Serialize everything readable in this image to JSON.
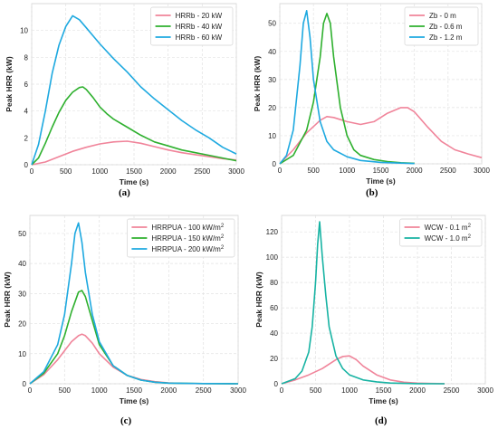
{
  "chart_data": [
    {
      "type": "line",
      "caption": "(a)",
      "xlabel": "Time (s)",
      "ylabel": "Peak HRR (kW)",
      "xlim": [
        0,
        3000
      ],
      "ylim": [
        0,
        12
      ],
      "xticks": [
        0,
        500,
        1000,
        1500,
        2000,
        2500,
        3000
      ],
      "yticks": [
        0,
        2,
        4,
        6,
        8,
        10
      ],
      "grid": true,
      "legend": "top-right",
      "series": [
        {
          "name": "HRRb - 20 kW",
          "color": "#f0849a",
          "x": [
            0,
            200,
            400,
            600,
            800,
            1000,
            1200,
            1400,
            1600,
            1800,
            2000,
            2200,
            2400,
            2600,
            2800,
            3000
          ],
          "y": [
            0,
            0.2,
            0.6,
            1.0,
            1.3,
            1.55,
            1.7,
            1.75,
            1.6,
            1.35,
            1.1,
            0.9,
            0.75,
            0.6,
            0.45,
            0.35
          ]
        },
        {
          "name": "HRRb - 40 kW",
          "color": "#2eb02e",
          "x": [
            0,
            100,
            200,
            300,
            400,
            500,
            600,
            700,
            750,
            800,
            900,
            1000,
            1100,
            1200,
            1400,
            1600,
            1800,
            2000,
            2200,
            2400,
            2600,
            2800,
            3000
          ],
          "y": [
            0,
            0.5,
            1.6,
            2.8,
            3.9,
            4.8,
            5.4,
            5.75,
            5.8,
            5.6,
            5.0,
            4.3,
            3.8,
            3.4,
            2.8,
            2.2,
            1.7,
            1.4,
            1.1,
            0.9,
            0.7,
            0.5,
            0.3
          ]
        },
        {
          "name": "HRRb - 60 kW",
          "color": "#1ea9e0",
          "x": [
            0,
            100,
            200,
            300,
            400,
            500,
            600,
            700,
            800,
            900,
            1000,
            1200,
            1400,
            1600,
            1800,
            2000,
            2200,
            2400,
            2600,
            2800,
            3000
          ],
          "y": [
            0,
            1.5,
            4.0,
            6.8,
            8.9,
            10.3,
            11.1,
            10.8,
            10.2,
            9.6,
            9.0,
            7.9,
            6.9,
            5.8,
            4.9,
            4.1,
            3.3,
            2.6,
            2.0,
            1.3,
            0.8
          ]
        }
      ]
    },
    {
      "type": "line",
      "caption": "(b)",
      "xlabel": "Time (s)",
      "ylabel": "Peak HRR (kW)",
      "xlim": [
        0,
        3000
      ],
      "ylim": [
        0,
        57
      ],
      "xticks": [
        0,
        500,
        1000,
        1500,
        2000,
        2500,
        3000
      ],
      "yticks": [
        0,
        10,
        20,
        30,
        40,
        50
      ],
      "grid": true,
      "legend": "top-right",
      "series": [
        {
          "name": "Zb - 0 m",
          "color": "#f0849a",
          "x": [
            0,
            200,
            400,
            600,
            700,
            800,
            1000,
            1200,
            1400,
            1600,
            1800,
            1900,
            2000,
            2200,
            2400,
            2600,
            2800,
            3000
          ],
          "y": [
            0,
            5,
            11,
            15.5,
            16.8,
            16.5,
            15,
            14,
            15,
            18,
            20,
            20,
            18.5,
            13,
            8,
            5,
            3.5,
            2.2
          ]
        },
        {
          "name": "Zb - 0.6 m",
          "color": "#2eb02e",
          "x": [
            0,
            200,
            400,
            500,
            600,
            650,
            700,
            750,
            800,
            900,
            1000,
            1100,
            1200,
            1400,
            1600,
            1800,
            2000
          ],
          "y": [
            0,
            3,
            12,
            22,
            38,
            50,
            53.5,
            50,
            38,
            20,
            10,
            5,
            3,
            1.5,
            0.8,
            0.4,
            0.2
          ]
        },
        {
          "name": "Zb - 1.2 m",
          "color": "#1ea9e0",
          "x": [
            0,
            100,
            200,
            300,
            350,
            400,
            450,
            500,
            600,
            700,
            800,
            1000,
            1200,
            1500,
            2000
          ],
          "y": [
            0,
            3,
            12,
            35,
            50,
            54.5,
            45,
            30,
            15,
            8,
            5,
            2.5,
            1.2,
            0.5,
            0.1
          ]
        }
      ]
    },
    {
      "type": "line",
      "caption": "(c)",
      "xlabel": "Time (s)",
      "ylabel": "Peak HRR (kW)",
      "xlim": [
        0,
        3000
      ],
      "ylim": [
        0,
        56
      ],
      "xticks": [
        0,
        500,
        1000,
        1500,
        2000,
        2500,
        3000
      ],
      "yticks": [
        0,
        10,
        20,
        30,
        40,
        50
      ],
      "grid": true,
      "legend": "top-right",
      "series": [
        {
          "name": "HRRPUA - 100 kW/m²",
          "color": "#f0849a",
          "x": [
            0,
            200,
            400,
            600,
            700,
            750,
            800,
            900,
            1000,
            1200,
            1400,
            1600,
            1800,
            2000,
            2200,
            2500,
            3000
          ],
          "y": [
            0,
            3,
            8,
            14,
            16,
            16.5,
            16,
            13.5,
            10,
            5.5,
            2.8,
            1.4,
            0.7,
            0.3,
            0.1,
            0.05,
            0
          ]
        },
        {
          "name": "HRRPUA - 150 kW/m²",
          "color": "#2eb02e",
          "x": [
            0,
            200,
            400,
            500,
            600,
            700,
            750,
            800,
            900,
            1000,
            1200,
            1400,
            1600,
            1800,
            2000,
            2500,
            3000
          ],
          "y": [
            0,
            3.5,
            10,
            16,
            24,
            30.5,
            31,
            29,
            21,
            13,
            6,
            2.8,
            1.2,
            0.5,
            0.2,
            0.05,
            0
          ]
        },
        {
          "name": "HRRPUA - 200 kW/m²",
          "color": "#1ea9e0",
          "x": [
            0,
            200,
            400,
            500,
            600,
            650,
            700,
            750,
            800,
            900,
            1000,
            1200,
            1400,
            1600,
            1800,
            2000,
            2500,
            3000
          ],
          "y": [
            0,
            4,
            13,
            23,
            40,
            50,
            53.5,
            47,
            37,
            23,
            14,
            6,
            2.8,
            1.2,
            0.5,
            0.2,
            0.05,
            0
          ]
        }
      ]
    },
    {
      "type": "line",
      "caption": "(d)",
      "xlabel": "Time (s)",
      "ylabel": "Peak HRR (kW)",
      "xlim": [
        0,
        3000
      ],
      "ylim": [
        0,
        133
      ],
      "xticks": [
        0,
        500,
        1000,
        1500,
        2000,
        2500,
        3000
      ],
      "yticks": [
        0,
        20,
        40,
        60,
        80,
        100,
        120
      ],
      "grid": true,
      "legend": "top-right",
      "series": [
        {
          "name": "WCW - 0.1 m²",
          "color": "#f0849a",
          "x": [
            0,
            200,
            400,
            600,
            800,
            900,
            1000,
            1100,
            1200,
            1400,
            1600,
            1800,
            2000,
            2200,
            2400
          ],
          "y": [
            0,
            3,
            7,
            12,
            19,
            21.5,
            22,
            19,
            14,
            7,
            3,
            1.2,
            0.5,
            0.2,
            0.1
          ]
        },
        {
          "name": "WCW - 1.0 m²",
          "color": "#17b3a3",
          "x": [
            0,
            200,
            300,
            400,
            450,
            500,
            530,
            560,
            600,
            650,
            700,
            800,
            900,
            1000,
            1200,
            1400,
            1600,
            1800,
            2000,
            2400
          ],
          "y": [
            0,
            4,
            10,
            25,
            45,
            80,
            110,
            128,
            100,
            70,
            45,
            22,
            12,
            7,
            3,
            1.5,
            0.6,
            0.3,
            0.1,
            0
          ]
        }
      ]
    }
  ]
}
